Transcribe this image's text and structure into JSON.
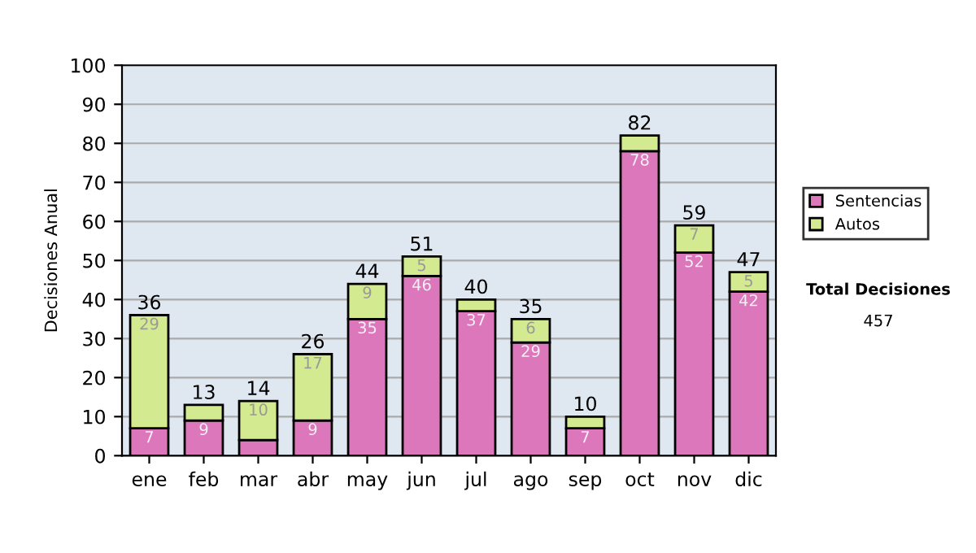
{
  "chart_data": {
    "type": "bar",
    "ylabel": "Decisiones Anual",
    "categories": [
      "ene",
      "feb",
      "mar",
      "abr",
      "may",
      "jun",
      "jul",
      "ago",
      "sep",
      "oct",
      "nov",
      "dic"
    ],
    "stacked": true,
    "series": [
      {
        "name": "Sentencias",
        "color": "#dd77bb",
        "values": [
          7,
          9,
          4,
          9,
          35,
          46,
          37,
          29,
          7,
          78,
          52,
          42
        ],
        "value_labels": [
          "7",
          "9",
          null,
          "9",
          "35",
          "46",
          "37",
          "29",
          "7",
          "78",
          "52",
          "42"
        ]
      },
      {
        "name": "Autos",
        "color": "#d4ea90",
        "values": [
          29,
          4,
          10,
          17,
          9,
          5,
          3,
          6,
          3,
          4,
          7,
          5
        ],
        "value_labels": [
          "29",
          null,
          "10",
          "17",
          "9",
          "5",
          null,
          "6",
          null,
          null,
          "7",
          "5"
        ]
      }
    ],
    "totals": [
      "36",
      "13",
      "14",
      "26",
      "44",
      "51",
      "40",
      "35",
      "10",
      "82",
      "59",
      "47"
    ],
    "ylim": [
      0,
      100
    ],
    "yticks": [
      0,
      10,
      20,
      30,
      40,
      50,
      60,
      70,
      80,
      90,
      100
    ],
    "grid": "y",
    "legend": "right",
    "annotations": [
      "Total Decisiones",
      "457"
    ]
  }
}
